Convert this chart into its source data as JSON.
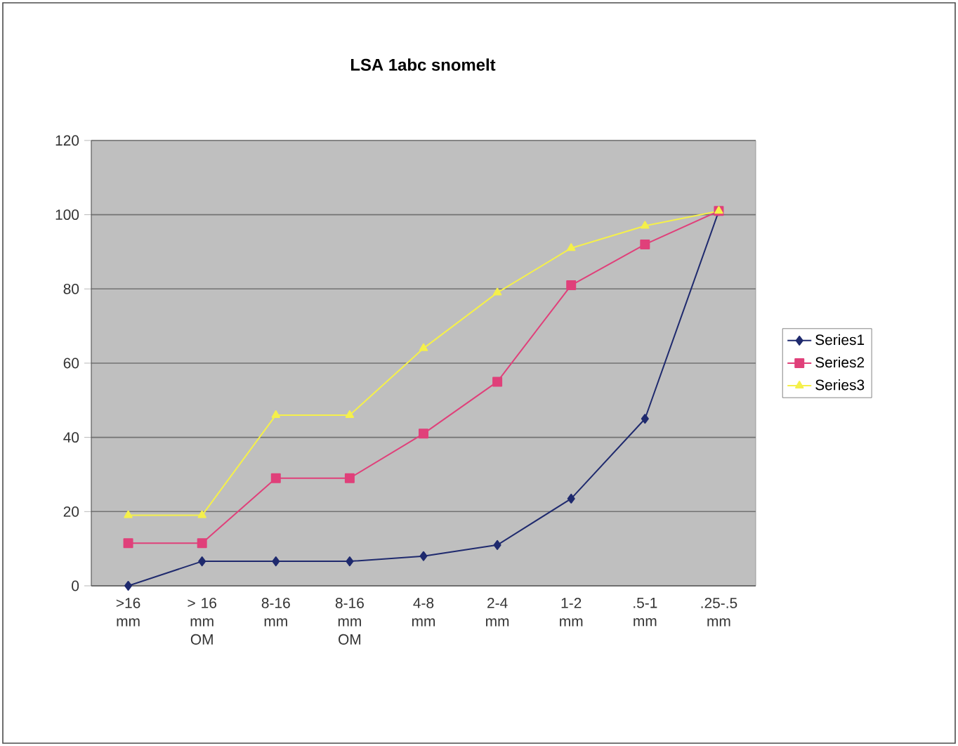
{
  "chart_data": {
    "type": "line",
    "title": "LSA 1abc snomelt",
    "categories": [
      ">16 mm",
      "> 16 mm OM",
      "8-16 mm",
      "8-16 mm OM",
      "4-8 mm",
      "2-4 mm",
      "1-2 mm",
      ".5-1 mm",
      ".25-.5 mm"
    ],
    "series": [
      {
        "name": "Series1",
        "color": "#1f2a6e",
        "marker": "diamond",
        "values": [
          0,
          6.6,
          6.6,
          6.6,
          8,
          11,
          23.5,
          45,
          101
        ]
      },
      {
        "name": "Series2",
        "color": "#e0407a",
        "marker": "square",
        "values": [
          11.5,
          11.5,
          29,
          29,
          41,
          55,
          81,
          92,
          101
        ]
      },
      {
        "name": "Series3",
        "color": "#f5f04a",
        "marker": "triangle",
        "values": [
          19,
          19,
          46,
          46,
          64,
          79,
          91,
          97,
          101
        ]
      }
    ],
    "ylim": [
      0,
      120
    ],
    "yticks": [
      0,
      20,
      40,
      60,
      80,
      100,
      120
    ],
    "grid": "y",
    "legend": "right"
  }
}
